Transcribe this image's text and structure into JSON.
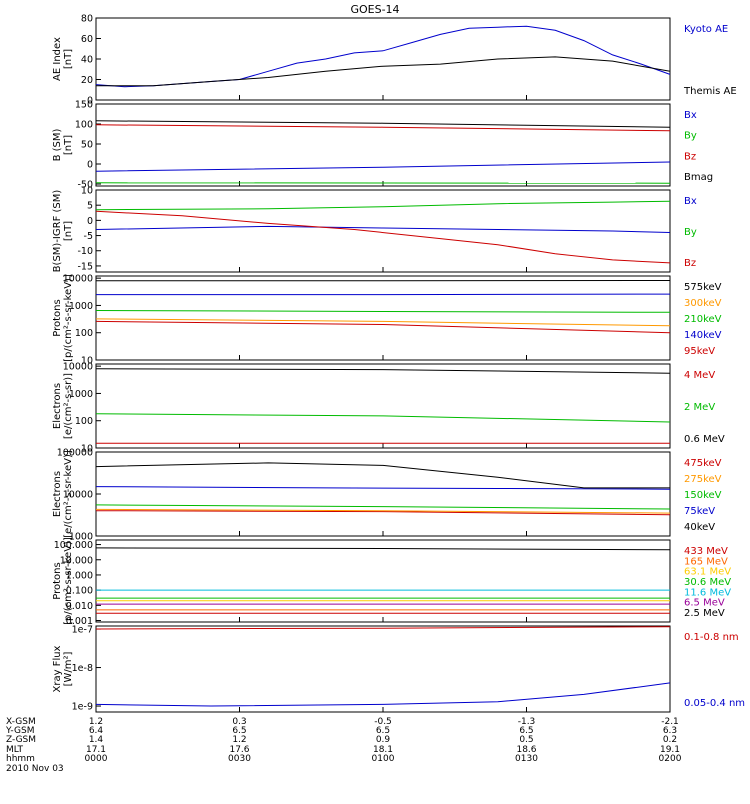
{
  "title": "GOES-14",
  "chart_data": [
    {
      "id": "ae",
      "type": "line",
      "ylabel": [
        "AE Index",
        "[nT]"
      ],
      "ylim": [
        0,
        80
      ],
      "yticks": [
        0,
        20,
        40,
        60,
        80
      ],
      "scale": "linear",
      "series": [
        {
          "name": "Kyoto AE",
          "color": "#0000cc",
          "points": [
            [
              0,
              15
            ],
            [
              0.05,
              13
            ],
            [
              0.1,
              14
            ],
            [
              0.15,
              16
            ],
            [
              0.2,
              18
            ],
            [
              0.25,
              20
            ],
            [
              0.3,
              28
            ],
            [
              0.35,
              36
            ],
            [
              0.4,
              40
            ],
            [
              0.45,
              46
            ],
            [
              0.5,
              48
            ],
            [
              0.55,
              56
            ],
            [
              0.6,
              64
            ],
            [
              0.65,
              70
            ],
            [
              0.7,
              71
            ],
            [
              0.75,
              72
            ],
            [
              0.8,
              68
            ],
            [
              0.85,
              58
            ],
            [
              0.9,
              44
            ],
            [
              0.95,
              35
            ],
            [
              1.0,
              25
            ]
          ]
        },
        {
          "name": "Themis AE",
          "color": "#000000",
          "points": [
            [
              0,
              14
            ],
            [
              0.1,
              14
            ],
            [
              0.2,
              18
            ],
            [
              0.3,
              22
            ],
            [
              0.4,
              28
            ],
            [
              0.5,
              33
            ],
            [
              0.6,
              35
            ],
            [
              0.7,
              40
            ],
            [
              0.8,
              42
            ],
            [
              0.9,
              38
            ],
            [
              1.0,
              28
            ]
          ]
        }
      ]
    },
    {
      "id": "bsm",
      "type": "line",
      "ylabel": [
        "B (SM)",
        "[nT]"
      ],
      "ylim": [
        -55,
        150
      ],
      "yticks": [
        -50,
        0,
        50,
        100,
        150
      ],
      "scale": "linear",
      "series": [
        {
          "name": "Bx",
          "color": "#0000cc",
          "points": [
            [
              0,
              -18
            ],
            [
              0.5,
              -8
            ],
            [
              1.0,
              5
            ]
          ]
        },
        {
          "name": "By",
          "color": "#00bb00",
          "points": [
            [
              0,
              -47
            ],
            [
              1.0,
              -48
            ]
          ]
        },
        {
          "name": "Bz",
          "color": "#cc0000",
          "points": [
            [
              0,
              98
            ],
            [
              0.5,
              92
            ],
            [
              1.0,
              83
            ]
          ]
        },
        {
          "name": "Bmag",
          "color": "#000000",
          "points": [
            [
              0,
              108
            ],
            [
              0.5,
              102
            ],
            [
              1.0,
              92
            ]
          ]
        }
      ]
    },
    {
      "id": "igrf",
      "type": "line",
      "ylabel": [
        "B(SM)-IGRF (SM)",
        "[nT]"
      ],
      "ylim": [
        -17,
        10
      ],
      "yticks": [
        -15,
        -10,
        -5,
        0,
        5,
        10
      ],
      "scale": "linear",
      "series": [
        {
          "name": "Bx",
          "color": "#0000cc",
          "points": [
            [
              0,
              -3
            ],
            [
              0.3,
              -2
            ],
            [
              0.5,
              -2.5
            ],
            [
              0.7,
              -3
            ],
            [
              0.9,
              -3.5
            ],
            [
              1.0,
              -4
            ]
          ]
        },
        {
          "name": "By",
          "color": "#00bb00",
          "points": [
            [
              0,
              3.5
            ],
            [
              0.3,
              3.8
            ],
            [
              0.5,
              4.5
            ],
            [
              0.7,
              5.5
            ],
            [
              0.9,
              6
            ],
            [
              1.0,
              6.3
            ]
          ]
        },
        {
          "name": "Bz",
          "color": "#cc0000",
          "points": [
            [
              0,
              3
            ],
            [
              0.15,
              1.5
            ],
            [
              0.3,
              -1
            ],
            [
              0.45,
              -3
            ],
            [
              0.6,
              -6
            ],
            [
              0.7,
              -8
            ],
            [
              0.8,
              -11
            ],
            [
              0.9,
              -13
            ],
            [
              1.0,
              -14
            ]
          ]
        }
      ]
    },
    {
      "id": "protons_low",
      "type": "line",
      "ylabel": [
        "Protons",
        "[p/(cm²-s-sr-keV)]"
      ],
      "ylim": [
        10,
        12000
      ],
      "yticks": [
        10,
        100,
        1000,
        10000
      ],
      "scale": "log",
      "series": [
        {
          "name": "575keV",
          "color": "#000000",
          "points": [
            [
              0,
              8000
            ],
            [
              0.5,
              8000
            ],
            [
              1.0,
              8200
            ]
          ]
        },
        {
          "name": "300keV",
          "color": "#ff9900",
          "points": [
            [
              0,
              320
            ],
            [
              0.5,
              260
            ],
            [
              1.0,
              180
            ]
          ]
        },
        {
          "name": "210keV",
          "color": "#00bb00",
          "points": [
            [
              0,
              650
            ],
            [
              0.5,
              600
            ],
            [
              1.0,
              560
            ]
          ]
        },
        {
          "name": "140keV",
          "color": "#0000cc",
          "points": [
            [
              0,
              2500
            ],
            [
              0.5,
              2500
            ],
            [
              1.0,
              2600
            ]
          ]
        },
        {
          "name": "95keV",
          "color": "#cc0000",
          "points": [
            [
              0,
              260
            ],
            [
              0.5,
              200
            ],
            [
              1.0,
              100
            ]
          ]
        }
      ]
    },
    {
      "id": "electrons_mev",
      "type": "line",
      "ylabel": [
        "Electrons",
        "[e/(cm²-s-sr)]"
      ],
      "ylim": [
        10,
        12000
      ],
      "yticks": [
        10,
        100,
        1000,
        10000
      ],
      "scale": "log",
      "series": [
        {
          "name": "4 MeV",
          "color": "#cc0000",
          "points": [
            [
              0,
              15
            ],
            [
              0.5,
              15
            ],
            [
              1.0,
              15
            ]
          ]
        },
        {
          "name": "2 MeV",
          "color": "#00bb00",
          "points": [
            [
              0,
              180
            ],
            [
              0.5,
              150
            ],
            [
              1.0,
              90
            ]
          ]
        },
        {
          "name": "0.6 MeV",
          "color": "#000000",
          "points": [
            [
              0,
              8000
            ],
            [
              0.5,
              7500
            ],
            [
              1.0,
              5500
            ]
          ]
        }
      ]
    },
    {
      "id": "electrons_kev",
      "type": "line",
      "ylabel": [
        "Electrons",
        "[e/(cm²-s-sr-keV)]"
      ],
      "ylim": [
        1000,
        100000
      ],
      "yticks": [
        1000,
        10000,
        100000
      ],
      "scale": "log",
      "series": [
        {
          "name": "475keV",
          "color": "#cc0000",
          "points": [
            [
              0,
              4000
            ],
            [
              0.5,
              3800
            ],
            [
              1.0,
              3200
            ]
          ]
        },
        {
          "name": "275keV",
          "color": "#ff9900",
          "points": [
            [
              0,
              4300
            ],
            [
              0.5,
              4000
            ],
            [
              1.0,
              3500
            ]
          ]
        },
        {
          "name": "150keV",
          "color": "#00bb00",
          "points": [
            [
              0,
              5500
            ],
            [
              0.5,
              5000
            ],
            [
              1.0,
              4400
            ]
          ]
        },
        {
          "name": "75keV",
          "color": "#0000cc",
          "points": [
            [
              0,
              15000
            ],
            [
              0.4,
              14000
            ],
            [
              0.7,
              13500
            ],
            [
              1.0,
              13000
            ]
          ]
        },
        {
          "name": "40keV",
          "color": "#000000",
          "points": [
            [
              0,
              45000
            ],
            [
              0.3,
              55000
            ],
            [
              0.5,
              48000
            ],
            [
              0.7,
              25000
            ],
            [
              0.85,
              14000
            ],
            [
              1.0,
              14000
            ]
          ]
        }
      ]
    },
    {
      "id": "protons_high",
      "type": "line",
      "ylabel": [
        "Protons",
        "[p/(cm²-s-sr-keV)]"
      ],
      "ylim": [
        0.0008,
        200
      ],
      "yticks": [
        0.001,
        0.01,
        0.1,
        1,
        10,
        100
      ],
      "ytick_labels": [
        "0.001",
        "0.010",
        "0.100",
        "1.000",
        "10.000",
        "100.000"
      ],
      "scale": "log",
      "series": [
        {
          "name": "433 MeV",
          "color": "#cc0000",
          "points": [
            [
              0,
              0.003
            ],
            [
              1.0,
              0.003
            ]
          ]
        },
        {
          "name": "165 MeV",
          "color": "#ff6600",
          "points": [
            [
              0,
              0.005
            ],
            [
              1.0,
              0.005
            ]
          ]
        },
        {
          "name": "63.1 MeV",
          "color": "#ffcc00",
          "points": [
            [
              0,
              0.02
            ],
            [
              1.0,
              0.02
            ]
          ]
        },
        {
          "name": "30.6 MeV",
          "color": "#00bb00",
          "points": [
            [
              0,
              0.03
            ],
            [
              1.0,
              0.03
            ]
          ]
        },
        {
          "name": "11.6 MeV",
          "color": "#00bbdd",
          "points": [
            [
              0,
              0.1
            ],
            [
              1.0,
              0.1
            ]
          ]
        },
        {
          "name": "6.5 MeV",
          "color": "#990099",
          "points": [
            [
              0,
              0.012
            ],
            [
              1.0,
              0.012
            ]
          ]
        },
        {
          "name": "2.5 MeV",
          "color": "#000000",
          "points": [
            [
              0,
              60
            ],
            [
              0.5,
              55
            ],
            [
              1.0,
              45
            ]
          ]
        }
      ]
    },
    {
      "id": "xray",
      "type": "line",
      "ylabel": [
        "Xray Flux",
        "[W/m²]"
      ],
      "ylim": [
        7e-10,
        1.2e-07
      ],
      "yticks": [
        1e-09,
        1e-08,
        1e-07
      ],
      "scale": "log",
      "series": [
        {
          "name": "0.1-0.8 nm",
          "color": "#cc0000",
          "points": [
            [
              0,
              1e-07
            ],
            [
              0.5,
              1.05e-07
            ],
            [
              1.0,
              1.15e-07
            ]
          ]
        },
        {
          "name": "0.05-0.4 nm",
          "color": "#0000cc",
          "points": [
            [
              0,
              1.1e-09
            ],
            [
              0.2,
              1e-09
            ],
            [
              0.5,
              1.1e-09
            ],
            [
              0.7,
              1.3e-09
            ],
            [
              0.85,
              2e-09
            ],
            [
              1.0,
              4e-09
            ]
          ]
        }
      ]
    }
  ],
  "x_axis": {
    "row_labels": [
      "X-GSM",
      "Y-GSM",
      "Z-GSM",
      "MLT",
      "hhmm",
      "2010 Nov 03"
    ],
    "columns": [
      [
        "1.2",
        "6.4",
        "1.4",
        "17.1",
        "0000"
      ],
      [
        "0.3",
        "6.5",
        "1.2",
        "17.6",
        "0030"
      ],
      [
        "-0.5",
        "6.5",
        "0.9",
        "18.1",
        "0100"
      ],
      [
        "-1.3",
        "6.5",
        "0.5",
        "18.6",
        "0130"
      ],
      [
        "-2.1",
        "6.3",
        "0.2",
        "19.1",
        "0200"
      ]
    ]
  }
}
